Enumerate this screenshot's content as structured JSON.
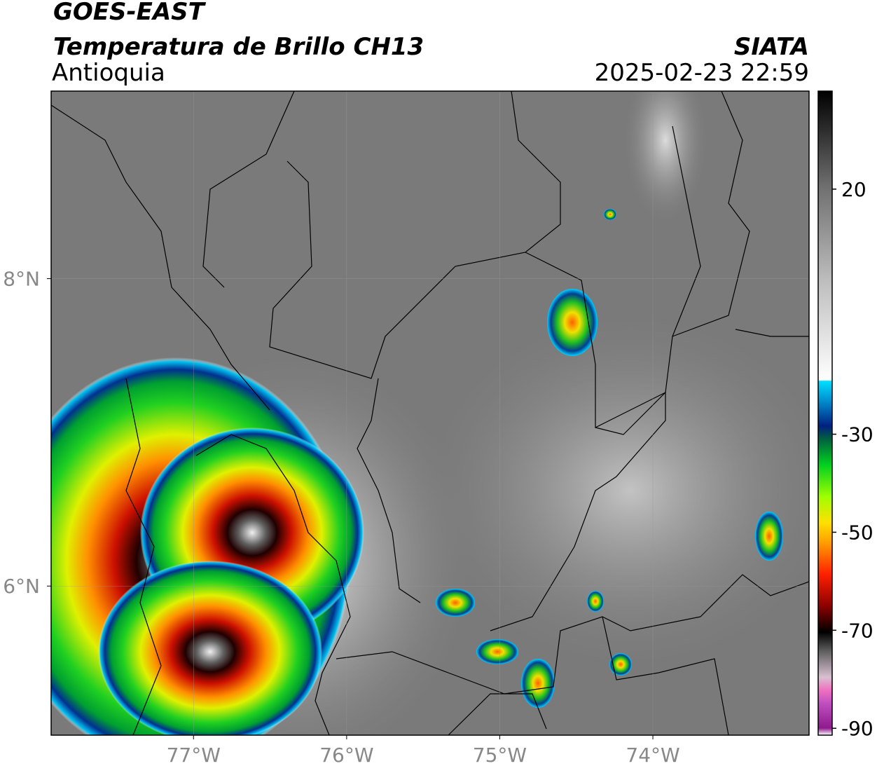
{
  "header": {
    "satellite": "GOES-EAST",
    "product": "Temperatura de Brillo CH13",
    "region": "Antioquia",
    "source": "SIATA",
    "datetime": "2025-02-23 22:59"
  },
  "map": {
    "xlim": [
      -77.93,
      -72.98
    ],
    "ylim": [
      5.03,
      9.22
    ],
    "xticks": [
      {
        "value": -77,
        "label": "77°W"
      },
      {
        "value": -76,
        "label": "76°W"
      },
      {
        "value": -75,
        "label": "75°W"
      },
      {
        "value": -74,
        "label": "74°W"
      }
    ],
    "yticks": [
      {
        "value": 8,
        "label": "8°N"
      },
      {
        "value": 6,
        "label": "6°N"
      }
    ]
  },
  "colorbar": {
    "lim": [
      -91.4,
      40
    ],
    "ticks": [
      20,
      -30,
      -50,
      -70,
      -90
    ]
  }
}
